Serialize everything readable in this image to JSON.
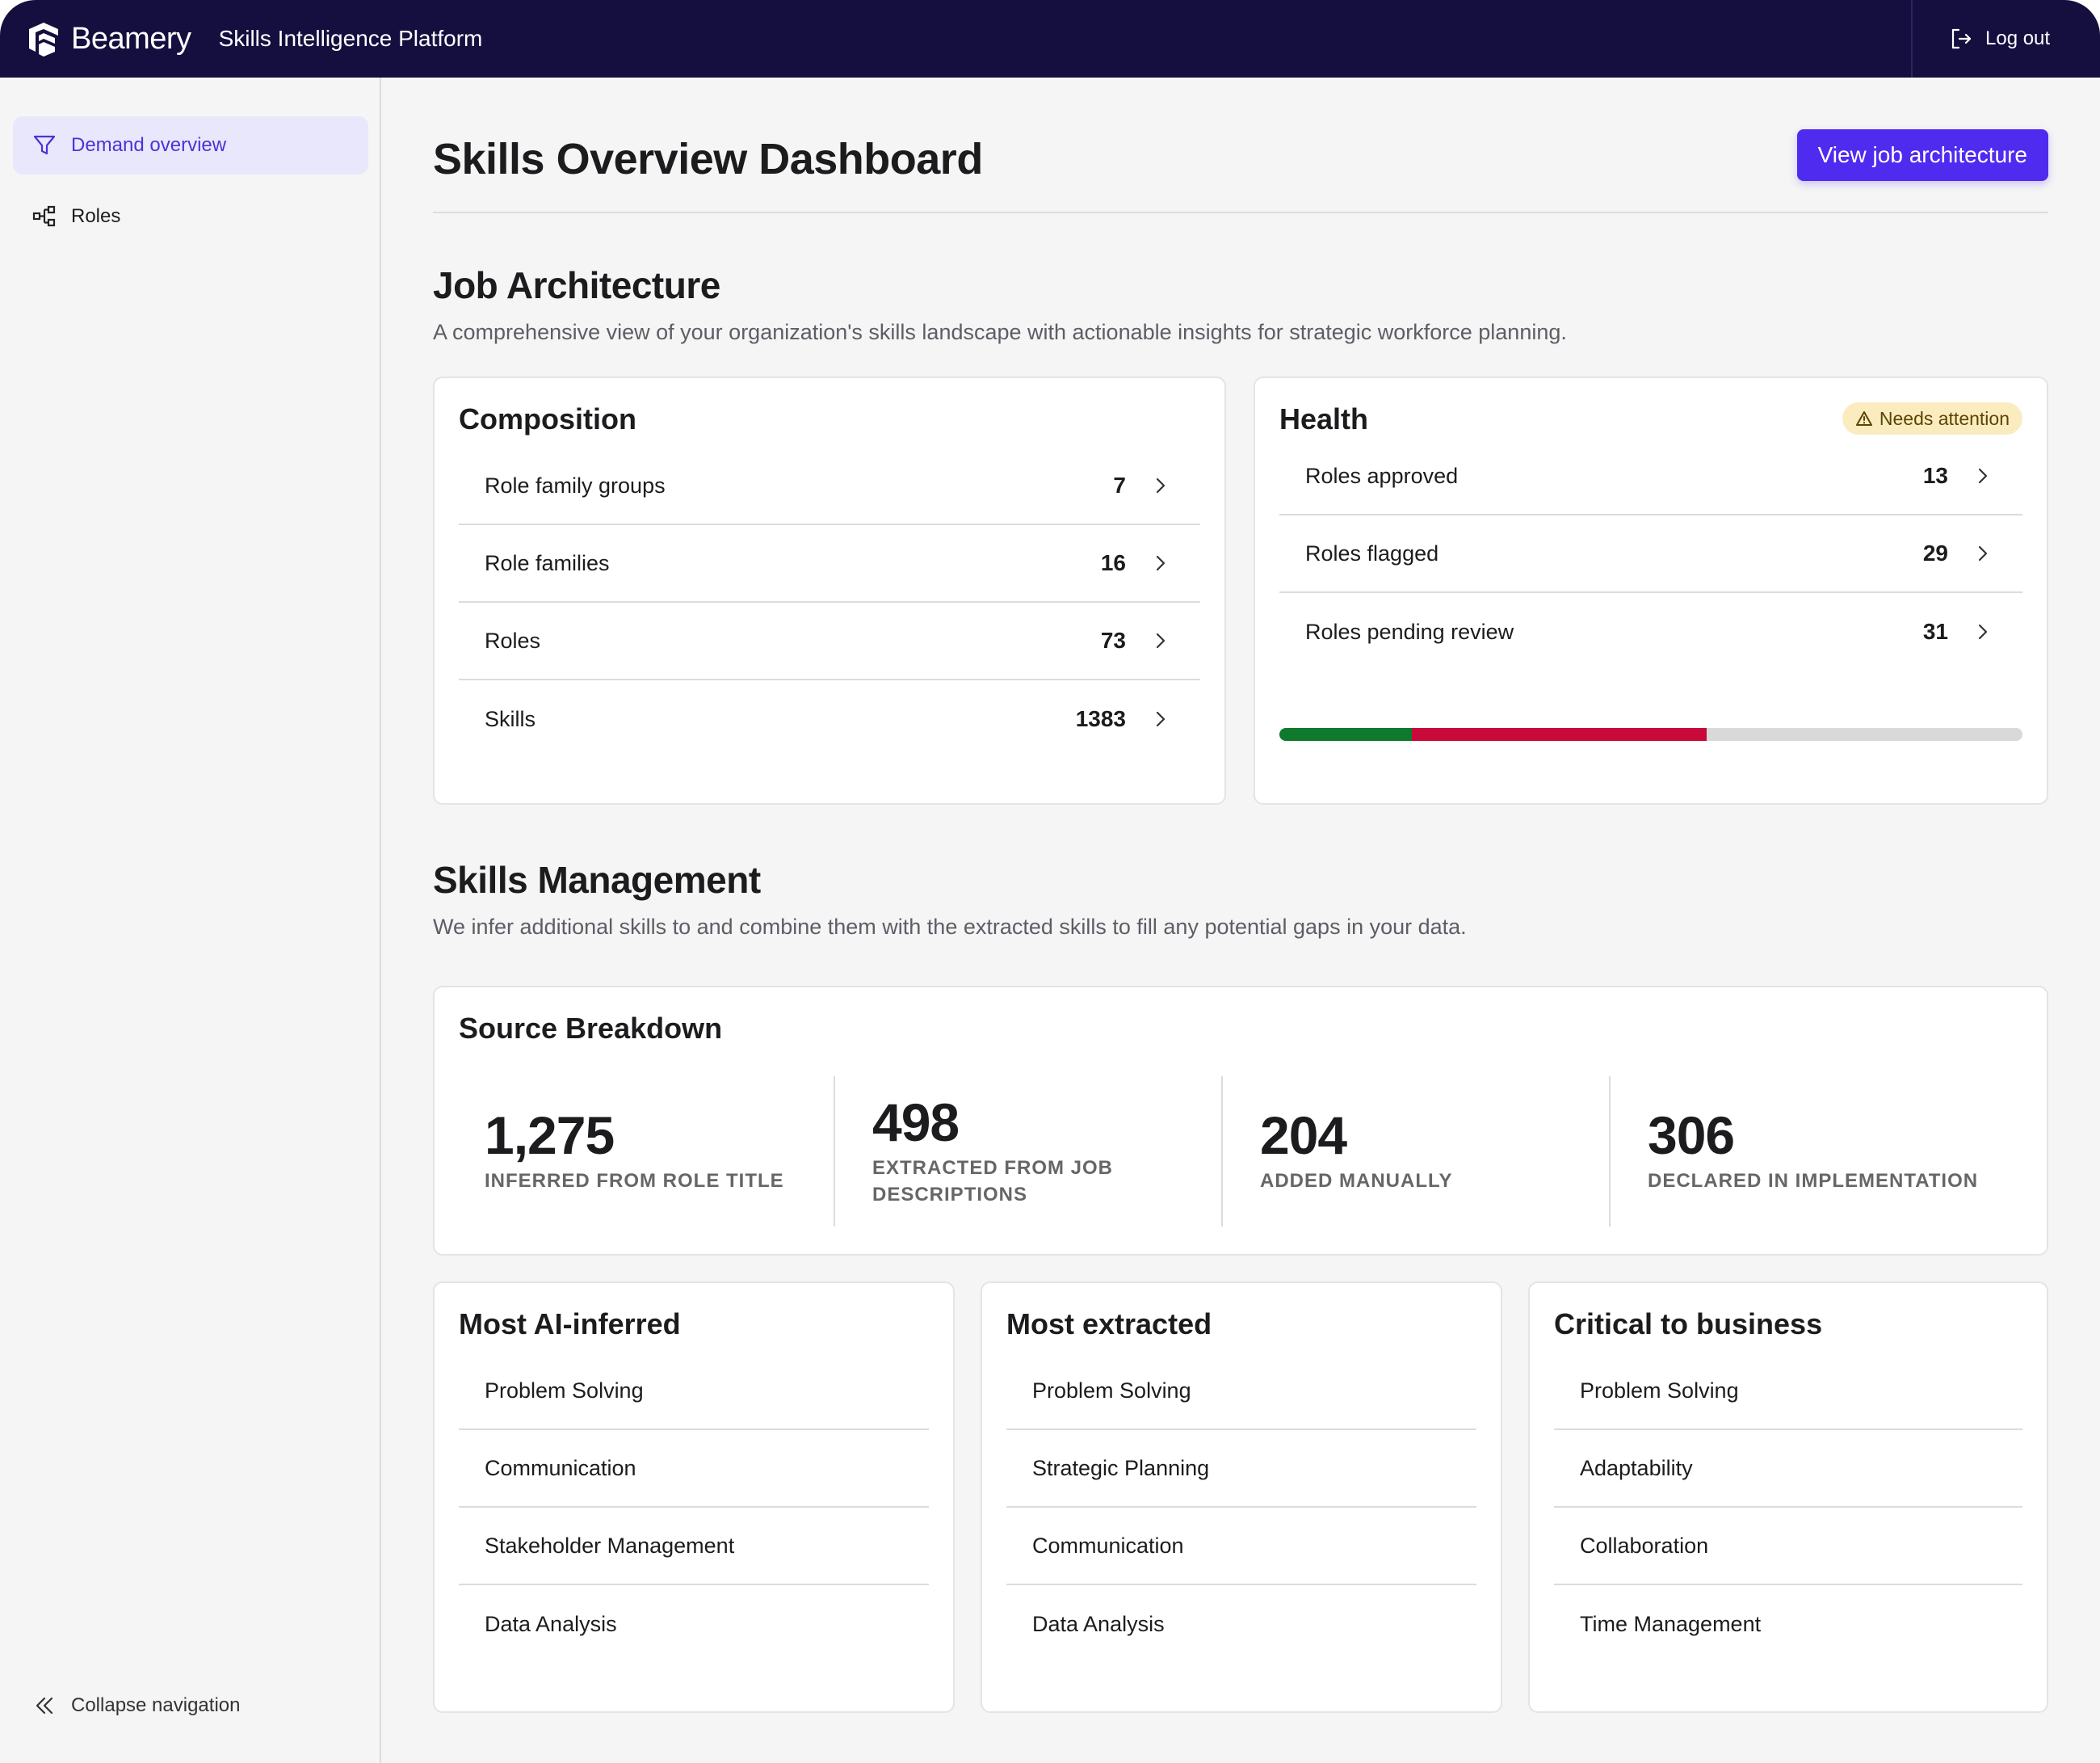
{
  "topbar": {
    "brand_name": "Beamery",
    "app_title": "Skills Intelligence Platform",
    "logout_label": "Log out"
  },
  "sidebar": {
    "items": [
      {
        "label": "Demand overview",
        "icon": "filter-icon",
        "active": true
      },
      {
        "label": "Roles",
        "icon": "hierarchy-icon",
        "active": false
      }
    ],
    "collapse_label": "Collapse navigation"
  },
  "header": {
    "title": "Skills Overview Dashboard",
    "primary_action": "View job architecture"
  },
  "job_architecture": {
    "title": "Job Architecture",
    "description": "A comprehensive view of your organization's skills landscape with actionable insights for strategic workforce planning.",
    "composition": {
      "title": "Composition",
      "rows": [
        {
          "label": "Role family groups",
          "value": "7"
        },
        {
          "label": "Role families",
          "value": "16"
        },
        {
          "label": "Roles",
          "value": "73"
        },
        {
          "label": "Skills",
          "value": "1383"
        }
      ]
    },
    "health": {
      "title": "Health",
      "badge": "Needs attention",
      "rows": [
        {
          "label": "Roles approved",
          "value": "13"
        },
        {
          "label": "Roles flagged",
          "value": "29"
        },
        {
          "label": "Roles pending review",
          "value": "31"
        }
      ],
      "progress": [
        {
          "name": "approved",
          "fraction": 0.178,
          "color": "#0f7a2e"
        },
        {
          "name": "flagged",
          "fraction": 0.397,
          "color": "#c70a3a"
        },
        {
          "name": "pending",
          "fraction": 0.425,
          "color": "#d9d9d9"
        }
      ]
    }
  },
  "skills_management": {
    "title": "Skills Management",
    "description": "We infer additional skills to and combine them with the extracted skills to fill any potential gaps in your data.",
    "source_breakdown": {
      "title": "Source Breakdown",
      "stats": [
        {
          "value": "1,275",
          "label": "INFERRED FROM ROLE TITLE"
        },
        {
          "value": "498",
          "label": "EXTRACTED FROM JOB DESCRIPTIONS"
        },
        {
          "value": "204",
          "label": "ADDED MANUALLY"
        },
        {
          "value": "306",
          "label": "DECLARED IN IMPLEMENTATION"
        }
      ]
    },
    "lists": [
      {
        "title": "Most AI-inferred",
        "items": [
          "Problem Solving",
          "Communication",
          "Stakeholder Management",
          "Data Analysis"
        ]
      },
      {
        "title": "Most extracted",
        "items": [
          "Problem Solving",
          "Strategic Planning",
          "Communication",
          "Data Analysis"
        ]
      },
      {
        "title": "Critical to business",
        "items": [
          "Problem Solving",
          "Adaptability",
          "Collaboration",
          "Time Management"
        ]
      }
    ]
  }
}
